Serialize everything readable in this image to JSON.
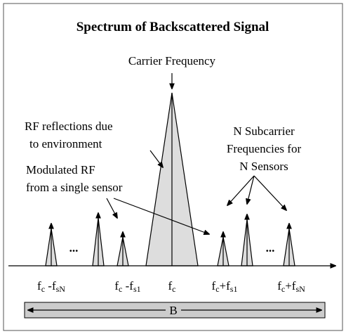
{
  "title": "Spectrum of Backscattered Signal",
  "carrier_label": "Carrier Frequency",
  "reflections_label": [
    "RF reflections due",
    "to environment"
  ],
  "modulated_label": [
    "Modulated RF",
    "from a single sensor"
  ],
  "subcarrier_label": [
    "N Subcarrier",
    "Frequencies for",
    "N Sensors"
  ],
  "ellipses": [
    "...",
    "..."
  ],
  "axis_labels": [
    [
      "f",
      "c",
      " -f",
      "sN"
    ],
    [
      "f",
      "c",
      " -f",
      "s1"
    ],
    [
      "f",
      "c"
    ],
    [
      "f",
      "c",
      "+f",
      "s1"
    ],
    [
      "f",
      "c",
      "+f",
      "sN"
    ]
  ],
  "bandwidth_label": "B"
}
